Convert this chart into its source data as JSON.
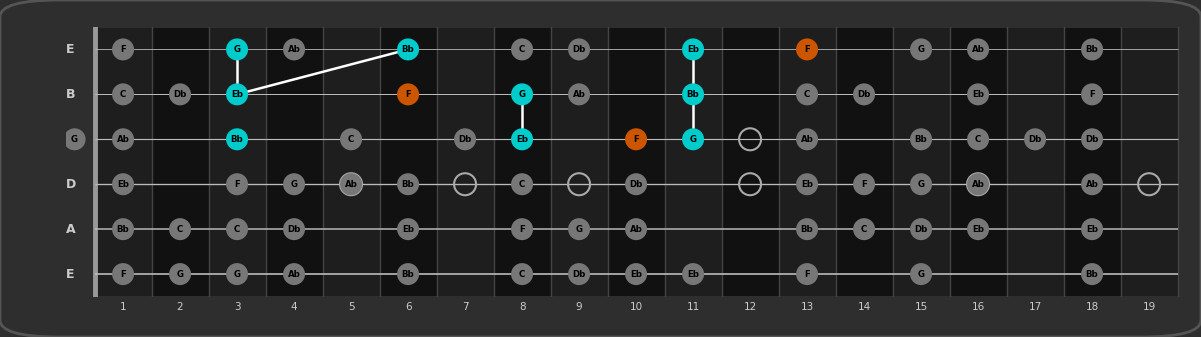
{
  "bg_color": "#2e2e2e",
  "fretboard_color": "#1a1a1a",
  "fret_color": "#444444",
  "string_color": "#bbbbbb",
  "nut_color": "#999999",
  "note_color_default": "#777777",
  "note_color_cyan": "#00cccc",
  "note_color_orange": "#cc5500",
  "note_text_color": "#000000",
  "label_color": "#cccccc",
  "num_frets": 19,
  "num_strings": 6,
  "string_names": [
    "E",
    "B",
    "G",
    "D",
    "A",
    "E"
  ],
  "open_circles": [
    [
      5,
      3
    ],
    [
      7,
      3
    ],
    [
      9,
      3
    ],
    [
      12,
      2
    ],
    [
      12,
      3
    ],
    [
      16,
      3
    ],
    [
      19,
      3
    ]
  ],
  "notes": [
    {
      "fret": 1,
      "string": 0,
      "label": "F"
    },
    {
      "fret": 1,
      "string": 1,
      "label": "C"
    },
    {
      "fret": 0,
      "string": 2,
      "label": "G"
    },
    {
      "fret": 1,
      "string": 2,
      "label": "Ab"
    },
    {
      "fret": 1,
      "string": 3,
      "label": "Eb"
    },
    {
      "fret": 1,
      "string": 4,
      "label": "Bb"
    },
    {
      "fret": 1,
      "string": 5,
      "label": "F"
    },
    {
      "fret": 2,
      "string": 1,
      "label": "Db"
    },
    {
      "fret": 2,
      "string": 4,
      "label": "C"
    },
    {
      "fret": 2,
      "string": 5,
      "label": "G"
    },
    {
      "fret": 3,
      "string": 0,
      "label": "G",
      "color": "cyan"
    },
    {
      "fret": 3,
      "string": 1,
      "label": "Eb",
      "color": "cyan"
    },
    {
      "fret": 3,
      "string": 2,
      "label": "Bb",
      "color": "cyan"
    },
    {
      "fret": 3,
      "string": 3,
      "label": "F"
    },
    {
      "fret": 3,
      "string": 4,
      "label": "C"
    },
    {
      "fret": 3,
      "string": 5,
      "label": "G"
    },
    {
      "fret": 4,
      "string": 0,
      "label": "Ab"
    },
    {
      "fret": 4,
      "string": 3,
      "label": "G"
    },
    {
      "fret": 4,
      "string": 4,
      "label": "Db"
    },
    {
      "fret": 4,
      "string": 5,
      "label": "Ab"
    },
    {
      "fret": 5,
      "string": 2,
      "label": "C"
    },
    {
      "fret": 5,
      "string": 3,
      "label": "Ab"
    },
    {
      "fret": 6,
      "string": 0,
      "label": "Bb",
      "color": "cyan"
    },
    {
      "fret": 6,
      "string": 1,
      "label": "F",
      "color": "orange"
    },
    {
      "fret": 6,
      "string": 3,
      "label": "Bb"
    },
    {
      "fret": 6,
      "string": 4,
      "label": "Eb"
    },
    {
      "fret": 6,
      "string": 5,
      "label": "Bb"
    },
    {
      "fret": 7,
      "string": 2,
      "label": "Db"
    },
    {
      "fret": 8,
      "string": 0,
      "label": "C"
    },
    {
      "fret": 8,
      "string": 1,
      "label": "G",
      "color": "cyan"
    },
    {
      "fret": 8,
      "string": 2,
      "label": "Eb",
      "color": "cyan"
    },
    {
      "fret": 8,
      "string": 3,
      "label": "C"
    },
    {
      "fret": 8,
      "string": 4,
      "label": "F"
    },
    {
      "fret": 8,
      "string": 5,
      "label": "C"
    },
    {
      "fret": 9,
      "string": 0,
      "label": "Db"
    },
    {
      "fret": 9,
      "string": 1,
      "label": "Ab"
    },
    {
      "fret": 9,
      "string": 4,
      "label": "G"
    },
    {
      "fret": 9,
      "string": 5,
      "label": "Db"
    },
    {
      "fret": 10,
      "string": 2,
      "label": "F",
      "color": "orange"
    },
    {
      "fret": 10,
      "string": 3,
      "label": "Db"
    },
    {
      "fret": 10,
      "string": 4,
      "label": "Ab"
    },
    {
      "fret": 10,
      "string": 5,
      "label": "Eb"
    },
    {
      "fret": 11,
      "string": 0,
      "label": "Eb",
      "color": "cyan"
    },
    {
      "fret": 11,
      "string": 1,
      "label": "Bb",
      "color": "cyan"
    },
    {
      "fret": 11,
      "string": 2,
      "label": "G",
      "color": "cyan"
    },
    {
      "fret": 11,
      "string": 5,
      "label": "Eb"
    },
    {
      "fret": 13,
      "string": 0,
      "label": "F",
      "color": "orange"
    },
    {
      "fret": 13,
      "string": 1,
      "label": "C"
    },
    {
      "fret": 13,
      "string": 2,
      "label": "Ab"
    },
    {
      "fret": 13,
      "string": 3,
      "label": "Eb"
    },
    {
      "fret": 13,
      "string": 4,
      "label": "Bb"
    },
    {
      "fret": 13,
      "string": 5,
      "label": "F"
    },
    {
      "fret": 14,
      "string": 1,
      "label": "Db"
    },
    {
      "fret": 14,
      "string": 3,
      "label": "F"
    },
    {
      "fret": 14,
      "string": 4,
      "label": "C"
    },
    {
      "fret": 15,
      "string": 0,
      "label": "G"
    },
    {
      "fret": 15,
      "string": 2,
      "label": "Bb"
    },
    {
      "fret": 15,
      "string": 3,
      "label": "G"
    },
    {
      "fret": 15,
      "string": 4,
      "label": "Db"
    },
    {
      "fret": 15,
      "string": 5,
      "label": "G"
    },
    {
      "fret": 16,
      "string": 0,
      "label": "Ab"
    },
    {
      "fret": 16,
      "string": 1,
      "label": "Eb"
    },
    {
      "fret": 16,
      "string": 2,
      "label": "C"
    },
    {
      "fret": 16,
      "string": 3,
      "label": "Ab"
    },
    {
      "fret": 16,
      "string": 4,
      "label": "Eb"
    },
    {
      "fret": 17,
      "string": 2,
      "label": "Db"
    },
    {
      "fret": 18,
      "string": 0,
      "label": "Bb"
    },
    {
      "fret": 18,
      "string": 1,
      "label": "F"
    },
    {
      "fret": 18,
      "string": 2,
      "label": "Db"
    },
    {
      "fret": 18,
      "string": 3,
      "label": "Ab"
    },
    {
      "fret": 18,
      "string": 4,
      "label": "Eb"
    },
    {
      "fret": 18,
      "string": 5,
      "label": "Bb"
    }
  ],
  "triad_lines": [
    {
      "from_fret": 3,
      "from_string": 0,
      "to_fret": 3,
      "to_string": 1
    },
    {
      "from_fret": 3,
      "from_string": 1,
      "to_fret": 6,
      "to_string": 0
    },
    {
      "from_fret": 8,
      "from_string": 1,
      "to_fret": 8,
      "to_string": 2
    },
    {
      "from_fret": 11,
      "from_string": 0,
      "to_fret": 11,
      "to_string": 1
    },
    {
      "from_fret": 11,
      "from_string": 1,
      "to_fret": 11,
      "to_string": 2
    }
  ]
}
